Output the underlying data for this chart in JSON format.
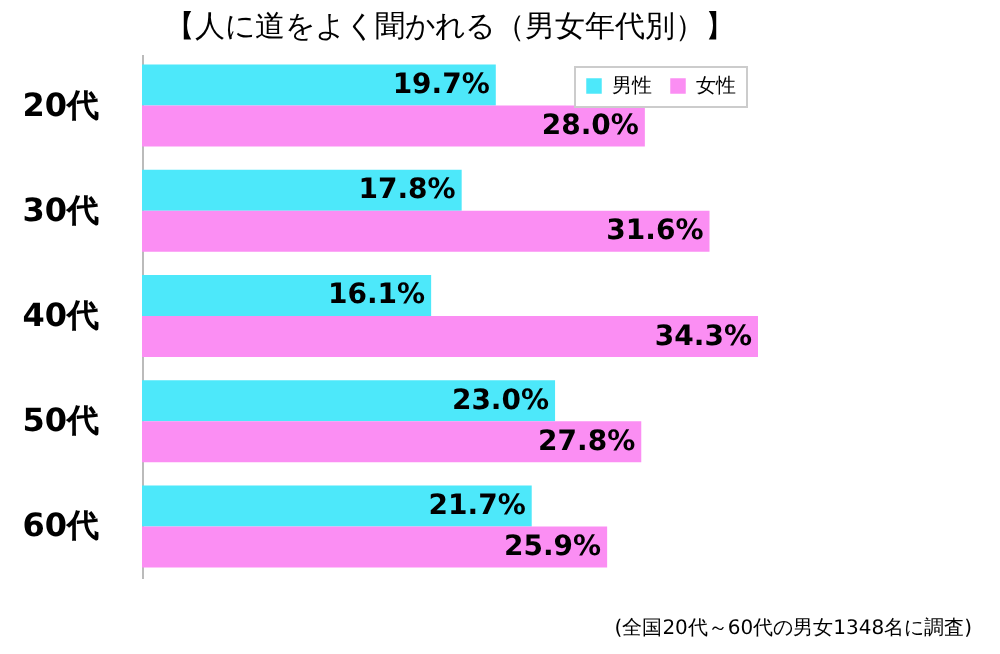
{
  "chart_data": {
    "type": "bar",
    "orientation": "horizontal",
    "title": "【人に道をよく聞かれる（男女年代別）】",
    "categories": [
      "20代",
      "30代",
      "40代",
      "50代",
      "60代"
    ],
    "series": [
      {
        "name": "男性",
        "color": "#4de8fa",
        "values": [
          19.7,
          17.8,
          16.1,
          23.0,
          21.7
        ],
        "value_labels": [
          "19.7%",
          "17.8%",
          "16.1%",
          "23.0%",
          "21.7%"
        ]
      },
      {
        "name": "女性",
        "color": "#fb8ef3",
        "values": [
          28.0,
          31.6,
          34.3,
          27.8,
          25.9
        ],
        "value_labels": [
          "28.0%",
          "31.6%",
          "34.3%",
          "27.8%",
          "25.9%"
        ]
      }
    ],
    "legend": "top right",
    "tick_labels": "y",
    "annotations": [
      "(全国20代～60代の男女1348名に調査)"
    ]
  }
}
